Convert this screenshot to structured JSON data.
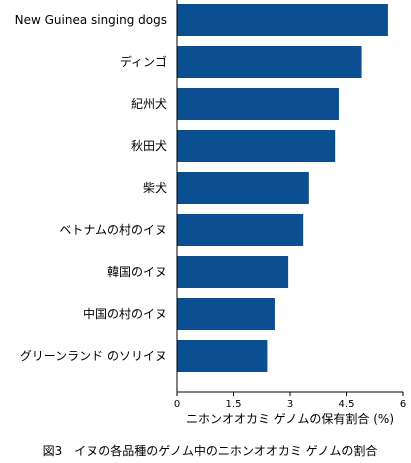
{
  "chart_data": {
    "type": "bar",
    "orientation": "horizontal",
    "categories": [
      "New Guinea singing dogs",
      "ディンゴ",
      "紀州犬",
      "秋田犬",
      "柴犬",
      "ベトナムの村のイヌ",
      "韓国のイヌ",
      "中国の村のイヌ",
      "グリーンランド のソリイヌ"
    ],
    "values": [
      5.6,
      4.9,
      4.3,
      4.2,
      3.5,
      3.35,
      2.95,
      2.6,
      2.4
    ],
    "xlabel": "ニホンオオカミ ゲノムの保有割合 (%)",
    "ylabel": "",
    "xlim": [
      0,
      6
    ],
    "xticks": [
      "0",
      "1.5",
      "3",
      "4.5",
      "6"
    ],
    "grid": false,
    "bar_color": "#0b4f91",
    "caption": "図3　イヌの各品種のゲノム中のニホンオオカミ ゲノムの割合"
  }
}
